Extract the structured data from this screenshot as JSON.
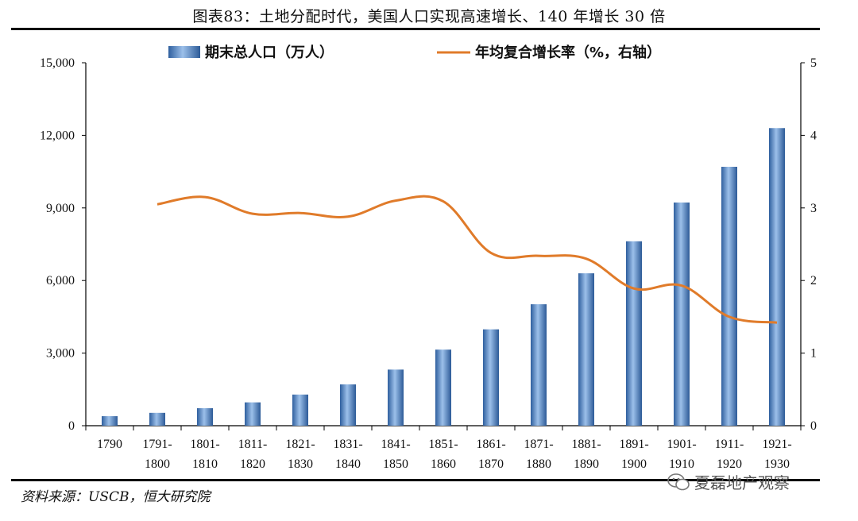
{
  "title": "图表83：土地分配时代，美国人口实现高速增长、140 年增长 30 倍",
  "source": "资料来源：USCB，恒大研究院",
  "watermark": "夏磊地产观察",
  "chart_data": {
    "type": "bar+line",
    "title": "图表83：土地分配时代，美国人口实现高速增长、140 年增长 30 倍",
    "categories": [
      [
        "1790"
      ],
      [
        "1791-",
        "1800"
      ],
      [
        "1801-",
        "1810"
      ],
      [
        "1811-",
        "1820"
      ],
      [
        "1821-",
        "1830"
      ],
      [
        "1831-",
        "1840"
      ],
      [
        "1841-",
        "1850"
      ],
      [
        "1851-",
        "1860"
      ],
      [
        "1861-",
        "1870"
      ],
      [
        "1871-",
        "1880"
      ],
      [
        "1881-",
        "1890"
      ],
      [
        "1891-",
        "1900"
      ],
      [
        "1901-",
        "1910"
      ],
      [
        "1911-",
        "1920"
      ],
      [
        "1921-",
        "1930"
      ]
    ],
    "series": [
      {
        "name": "期末总人口（万人）",
        "type": "bar",
        "axis": "left",
        "color": "#4a7fbf",
        "values": [
          393,
          531,
          724,
          964,
          1287,
          1707,
          2319,
          3144,
          3982,
          5019,
          6298,
          7621,
          9223,
          10700,
          12300
        ]
      },
      {
        "name": "年均复合增长率（%，右轴）",
        "type": "line",
        "axis": "right",
        "color": "#e07b2a",
        "values": [
          null,
          3.05,
          3.15,
          2.92,
          2.93,
          2.88,
          3.1,
          3.09,
          2.38,
          2.34,
          2.3,
          1.89,
          1.93,
          1.5,
          1.42
        ]
      }
    ],
    "y_left": {
      "min": 0,
      "max": 15000,
      "ticks": [
        "0",
        "3,000",
        "6,000",
        "9,000",
        "12,000",
        "15,000"
      ]
    },
    "y_right": {
      "min": 0,
      "max": 5,
      "ticks": [
        "0",
        "1",
        "2",
        "3",
        "4",
        "5"
      ]
    },
    "legend": "top"
  }
}
